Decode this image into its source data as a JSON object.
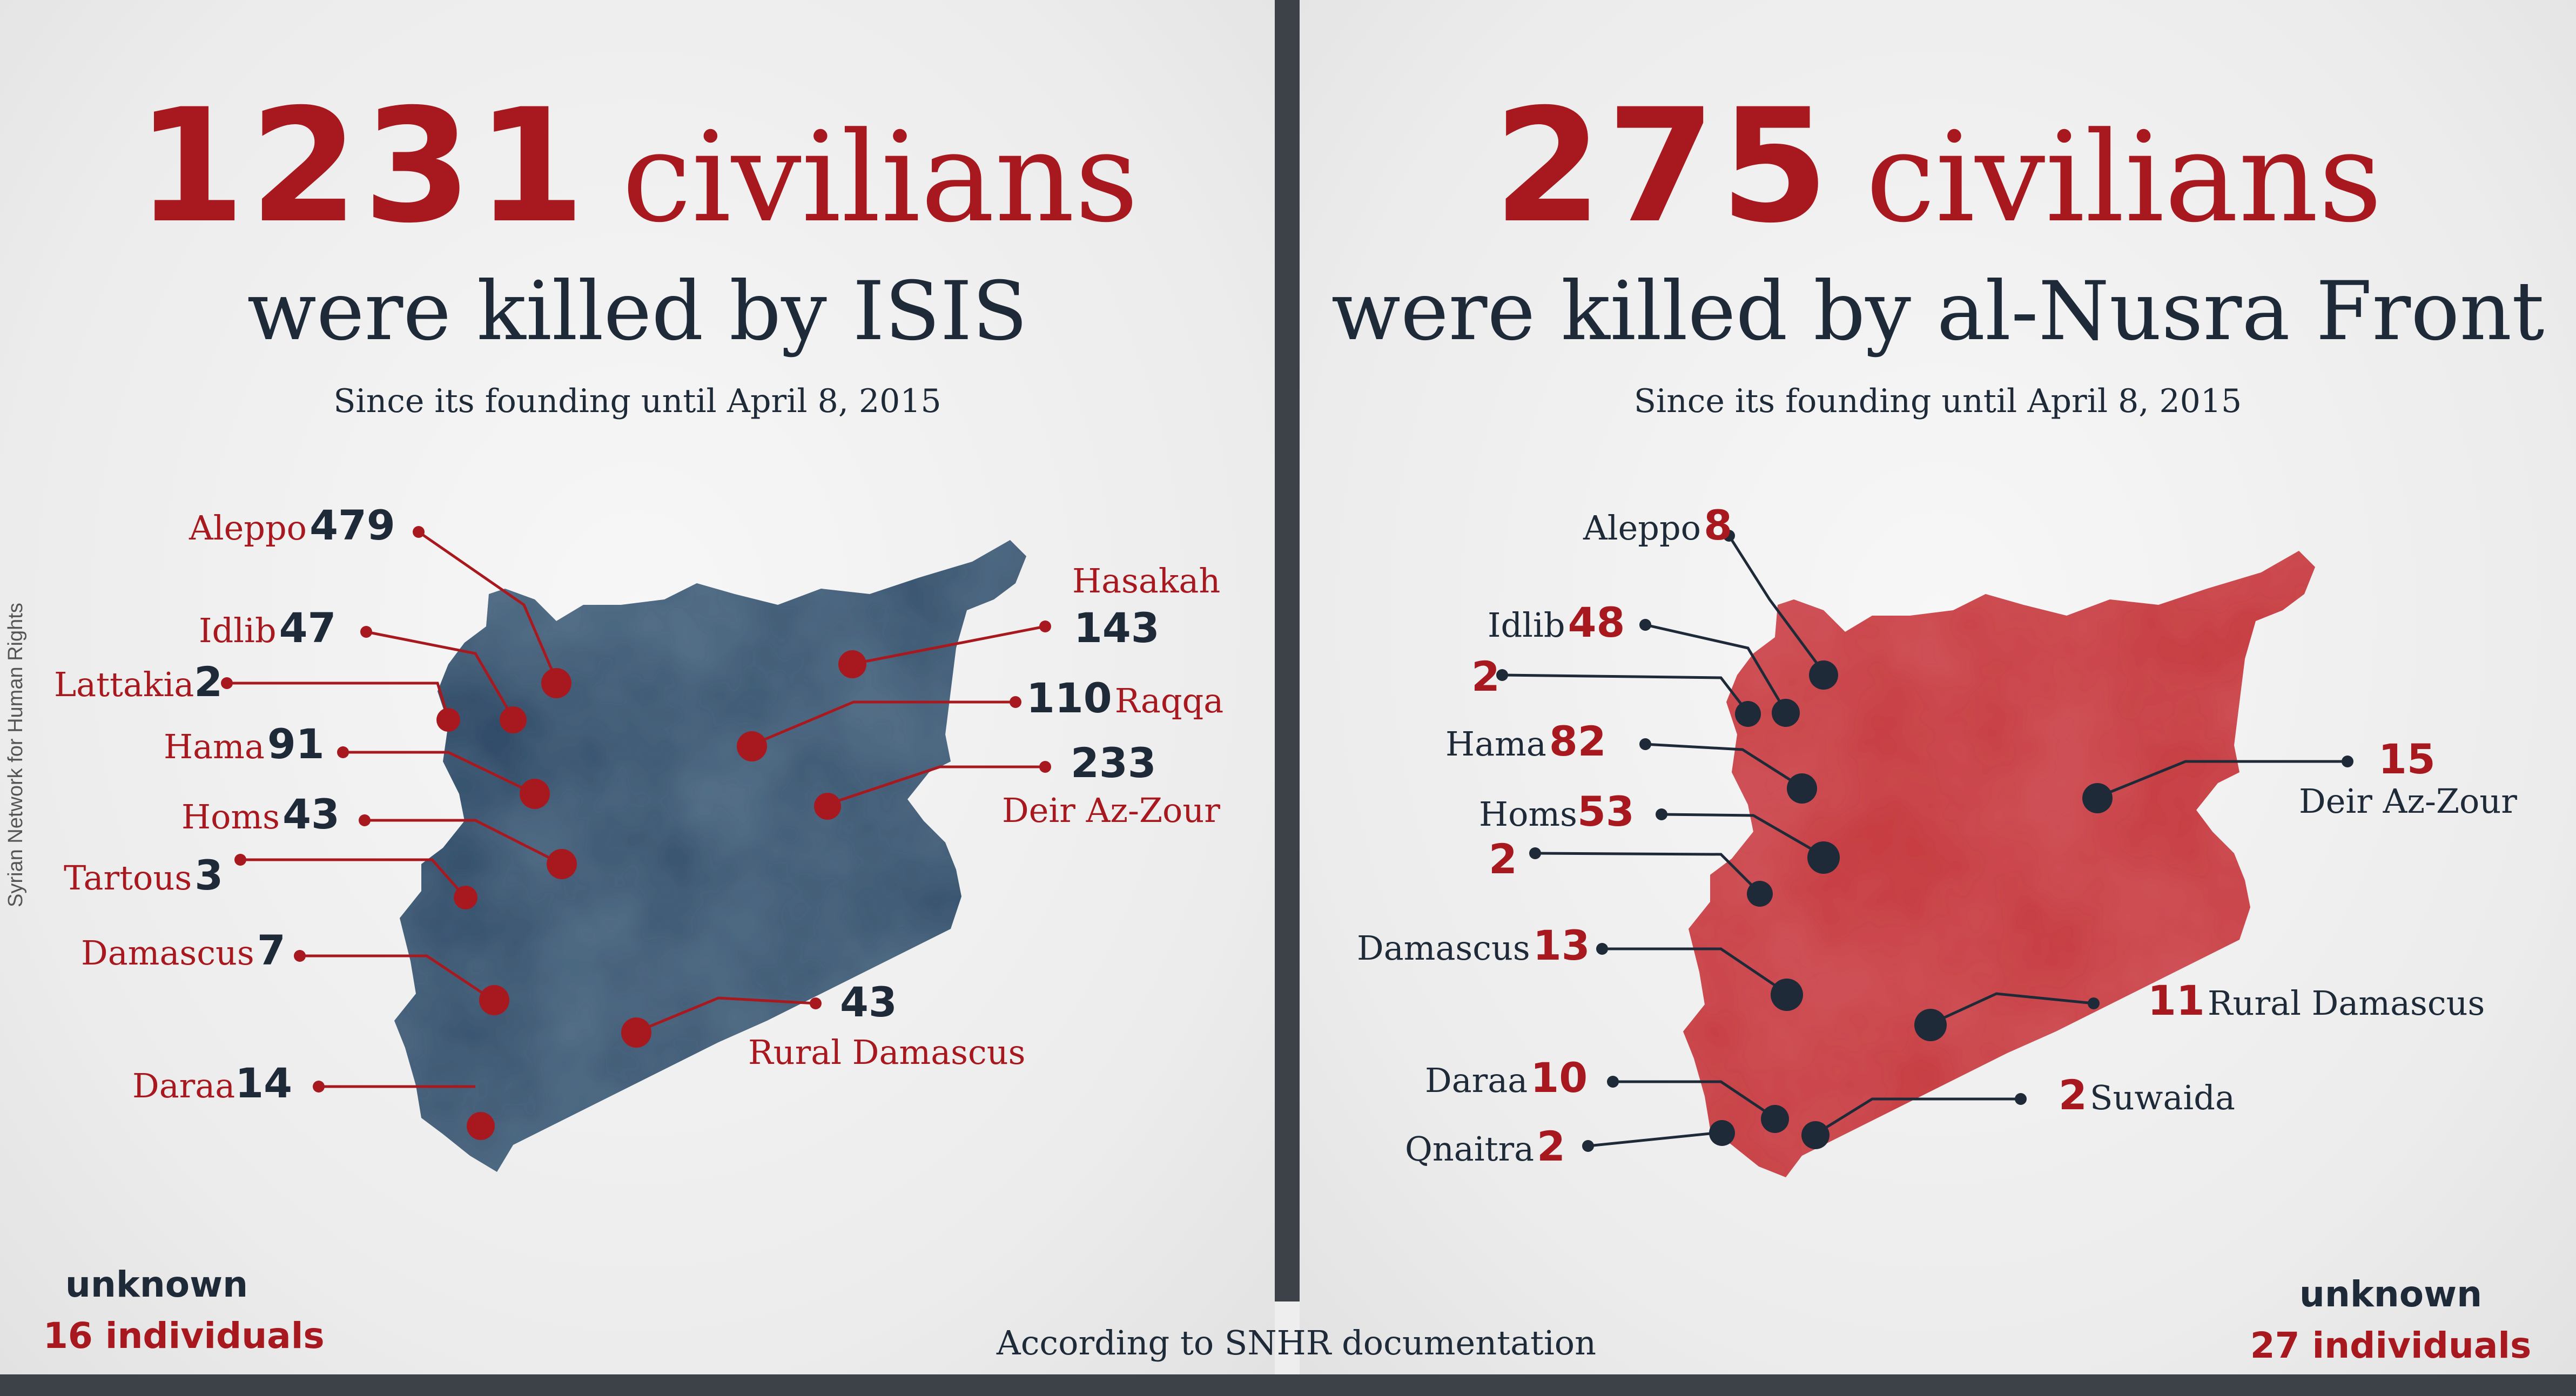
{
  "left": {
    "count": "1231",
    "count_word": "civilians",
    "subtitle": "were killed by ISIS",
    "since": "Since its founding until April 8, 2015",
    "regions": [
      {
        "name": "Aleppo",
        "value": "479"
      },
      {
        "name": "Idlib",
        "value": "47"
      },
      {
        "name": "Lattakia",
        "value": "2"
      },
      {
        "name": "Hama",
        "value": "91"
      },
      {
        "name": "Homs",
        "value": "43"
      },
      {
        "name": "Tartous",
        "value": "3"
      },
      {
        "name": "Damascus",
        "value": "7"
      },
      {
        "name": "Daraa",
        "value": "14"
      },
      {
        "name": "Hasakah",
        "value": "143"
      },
      {
        "name": "Raqqa",
        "value": "110"
      },
      {
        "name": "Deir Az-Zour",
        "value": "233"
      },
      {
        "name": "Rural Damascus",
        "value": "43"
      }
    ],
    "unknown_label": "unknown",
    "unknown_value": "16 individuals",
    "map_color": "#2f4a66"
  },
  "right": {
    "count": "275",
    "count_word": "civilians",
    "subtitle": "were killed by al-Nusra Front",
    "since": "Since its founding until April 8, 2015",
    "regions": [
      {
        "name": "Aleppo",
        "value": "8"
      },
      {
        "name": "Idlib",
        "value": "48"
      },
      {
        "name": "",
        "value": "2"
      },
      {
        "name": "Hama",
        "value": "82"
      },
      {
        "name": "Homs",
        "value": "53"
      },
      {
        "name": "",
        "value": "2"
      },
      {
        "name": "Damascus",
        "value": "13"
      },
      {
        "name": "Daraa",
        "value": "10"
      },
      {
        "name": "Qnaitra",
        "value": "2"
      },
      {
        "name": "Deir Az-Zour",
        "value": "15"
      },
      {
        "name": "Rural Damascus",
        "value": "11"
      },
      {
        "name": "Suwaida",
        "value": "2"
      }
    ],
    "unknown_label": "unknown",
    "unknown_value": "27 individuals",
    "map_color": "#c4373a"
  },
  "side_credit": "Syrian Network for Human Rights",
  "footer": "According to SNHR documentation",
  "colors": {
    "accent": "#a8191f",
    "dark": "#1e2a38",
    "divider": "#3d4248"
  }
}
